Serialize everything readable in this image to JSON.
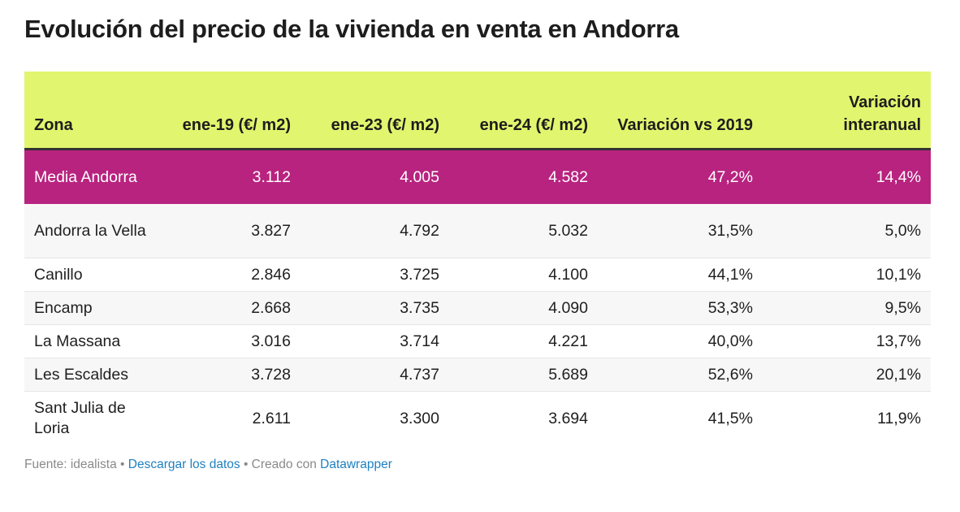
{
  "chart_data": {
    "type": "table",
    "title": "Evolución del precio de la vivienda en venta en Andorra",
    "columns": [
      "Zona",
      "ene-19 (€/ m2)",
      "ene-23 (€/ m2)",
      "ene-24 (€/ m2)",
      "Variación vs 2019",
      "Variación interanual"
    ],
    "rows": [
      [
        "Media Andorra",
        "3.112",
        "4.005",
        "4.582",
        "47,2%",
        "14,4%"
      ],
      [
        "Andorra la Vella",
        "3.827",
        "4.792",
        "5.032",
        "31,5%",
        "5,0%"
      ],
      [
        "Canillo",
        "2.846",
        "3.725",
        "4.100",
        "44,1%",
        "10,1%"
      ],
      [
        "Encamp",
        "2.668",
        "3.735",
        "4.090",
        "53,3%",
        "9,5%"
      ],
      [
        "La Massana",
        "3.016",
        "3.714",
        "4.221",
        "40,0%",
        "13,7%"
      ],
      [
        "Les Escaldes",
        "3.728",
        "4.737",
        "5.689",
        "52,6%",
        "20,1%"
      ],
      [
        "Sant Julia de Loria",
        "2.611",
        "3.300",
        "3.694",
        "41,5%",
        "11,9%"
      ]
    ],
    "highlight_row": "Media Andorra"
  },
  "colors": {
    "header_bg": "#e2f56e",
    "highlight_bg": "#b8237f",
    "link": "#1f80c0"
  },
  "footer": {
    "source_prefix": "Fuente: idealista",
    "sep1": " • ",
    "download_link": "Descargar los datos",
    "sep2": " • Creado con ",
    "datawrapper_link": "Datawrapper"
  }
}
